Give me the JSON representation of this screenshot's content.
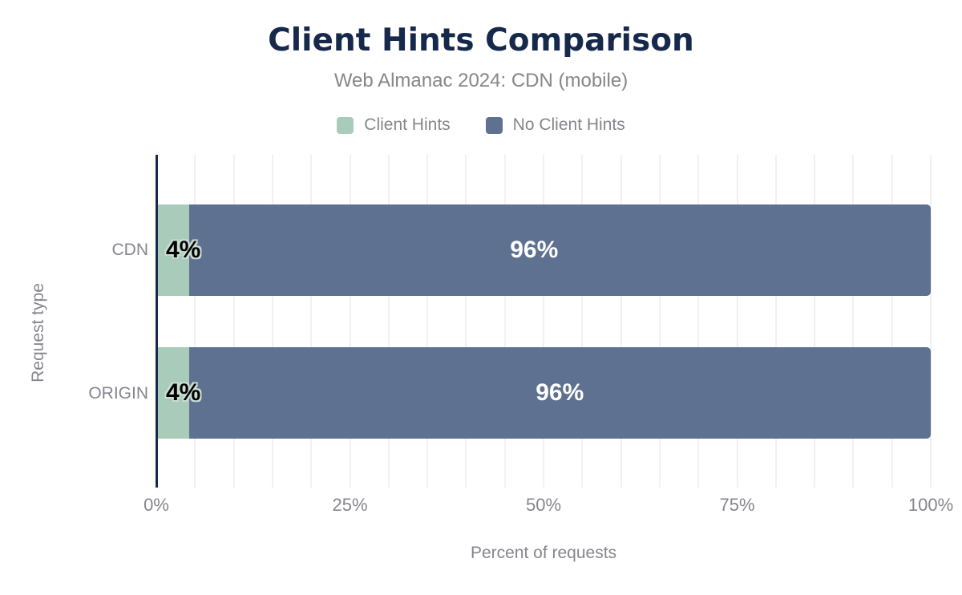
{
  "chart_data": {
    "type": "bar",
    "orientation": "horizontal",
    "stacked": true,
    "title": "Client Hints Comparison",
    "subtitle": "Web Almanac 2024: CDN (mobile)",
    "xlabel": "Percent of requests",
    "ylabel": "Request type",
    "xlim": [
      0,
      100
    ],
    "grid_step_percent": 5,
    "grid": true,
    "legend_position": "top-center",
    "series": [
      {
        "name": "Client Hints",
        "color": "#a8ccb9"
      },
      {
        "name": "No Client Hints",
        "color": "#5f7190"
      }
    ],
    "categories": [
      "CDN",
      "ORIGIN"
    ],
    "bars": [
      {
        "category": "CDN",
        "segments": [
          {
            "series": "Client Hints",
            "value": 4,
            "label": "4%"
          },
          {
            "series": "No Client Hints",
            "value": 96,
            "label": "96%"
          }
        ]
      },
      {
        "category": "ORIGIN",
        "segments": [
          {
            "series": "Client Hints",
            "value": 4,
            "label": "4%"
          },
          {
            "series": "No Client Hints",
            "value": 96,
            "label": "96%"
          }
        ]
      }
    ],
    "x_ticks": [
      {
        "label": "0%",
        "value": 0
      },
      {
        "label": "25%",
        "value": 25
      },
      {
        "label": "50%",
        "value": 50
      },
      {
        "label": "75%",
        "value": 75
      },
      {
        "label": "100%",
        "value": 100
      }
    ]
  },
  "colors": {
    "background": "#ffffff",
    "title_text": "#16294b",
    "muted_text": "#85868e",
    "axis_line": "#16294b",
    "gridline": "#f1f1f3",
    "value_on_dark_segment": "#ffffff",
    "value_on_light_segment": "#000000",
    "value_halo": "#c9dcd1"
  }
}
